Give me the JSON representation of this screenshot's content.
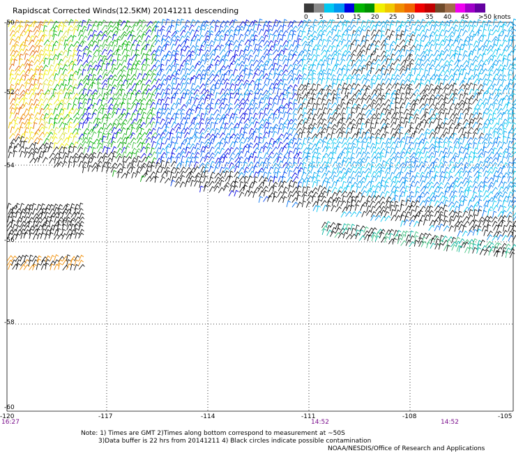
{
  "title": "Rapidscat Corrected Winds(12.5KM) 20141211 descending",
  "colorbar": {
    "labels": [
      "0",
      "5",
      "10",
      "15",
      "20",
      "25",
      "30",
      "35",
      "40",
      "45",
      ">50 knots"
    ],
    "colors": [
      "#3a3a3a",
      "#8a8a8a",
      "#00c8f0",
      "#0096f0",
      "#0000e0",
      "#00b400",
      "#009000",
      "#f0f000",
      "#f0c800",
      "#f08c00",
      "#f06400",
      "#f00000",
      "#c00000",
      "#6e4a2a",
      "#a06e4a",
      "#f000f0",
      "#a000c8",
      "#6400a0"
    ]
  },
  "map": {
    "lat_labels": [
      "-50",
      "-52",
      "-54",
      "-56",
      "-58",
      "-60"
    ],
    "lon_labels": [
      "-120",
      "-117",
      "-114",
      "-111",
      "-108",
      "-105"
    ],
    "time_labels": [
      "16:27",
      "14:52",
      "14:52"
    ]
  },
  "notes": {
    "line1": "Note: 1) Times are GMT 2)Times along bottom correspond to measurement at ~50S",
    "line2": "3)Data buffer is 22 hrs from 20141211 4) Black circles indicate possible contamination",
    "credit": "NOAA/NESDIS/Office of Research and Applications"
  }
}
